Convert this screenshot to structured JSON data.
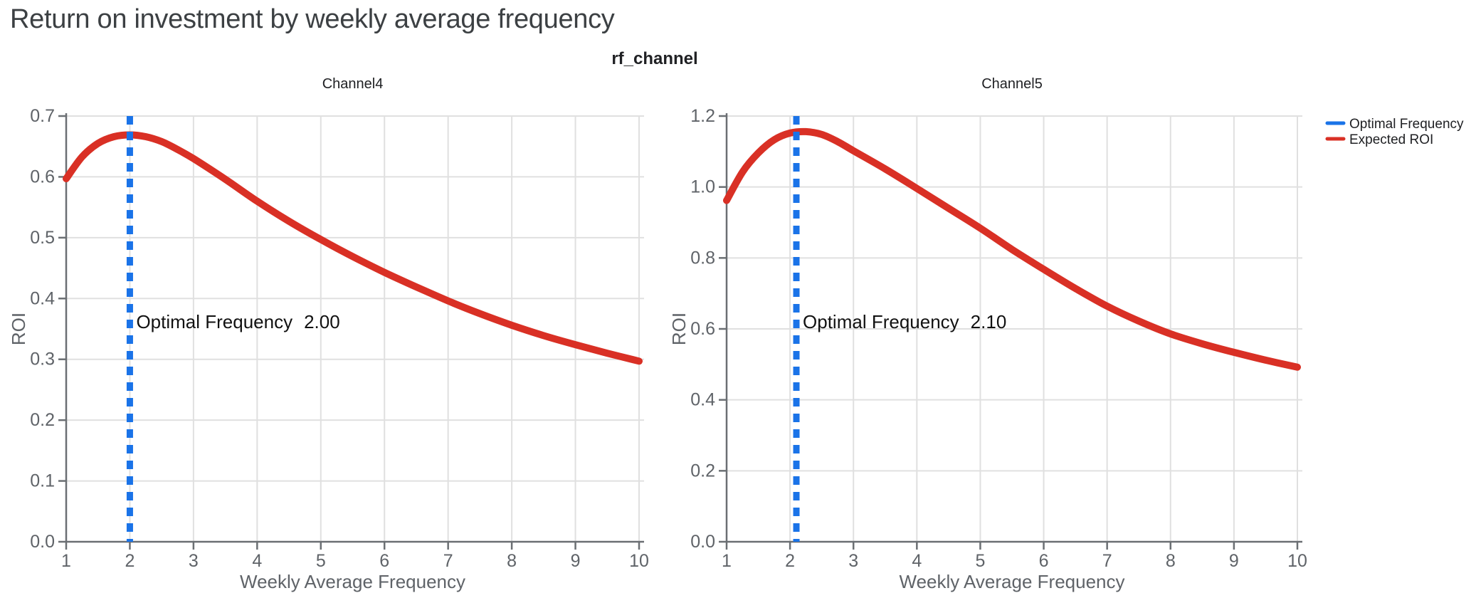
{
  "page": {
    "title": "Return on investment by weekly average frequency"
  },
  "figure": {
    "facet_title": "rf_channel"
  },
  "colors": {
    "expected_roi": "#D93025",
    "optimal_frequency": "#1A73E8",
    "gridline": "#E0E0E0",
    "spine": "#6B6F73",
    "tick_text": "#5F6368",
    "title_text": "#3C4043"
  },
  "legend": {
    "items": [
      {
        "label": "Optimal Frequency",
        "color": "#1A73E8"
      },
      {
        "label": "Expected ROI",
        "color": "#D93025"
      }
    ]
  },
  "chart_data": [
    {
      "type": "line",
      "title": "Channel4",
      "xlabel": "Weekly Average Frequency",
      "ylabel": "ROI",
      "xlim": [
        1,
        10
      ],
      "ylim": [
        0,
        0.7
      ],
      "grid": true,
      "xticks": [
        "1",
        "2",
        "3",
        "4",
        "5",
        "6",
        "7",
        "8",
        "9",
        "10"
      ],
      "yticks": [
        {
          "v": 0.0,
          "label": "0.0"
        },
        {
          "v": 0.1,
          "label": "0.1"
        },
        {
          "v": 0.2,
          "label": "0.2"
        },
        {
          "v": 0.3,
          "label": "0.3"
        },
        {
          "v": 0.4,
          "label": "0.4"
        },
        {
          "v": 0.5,
          "label": "0.5"
        },
        {
          "v": 0.6,
          "label": "0.6"
        },
        {
          "v": 0.7,
          "label": "0.7"
        }
      ],
      "vline": {
        "x": 2.0,
        "name": "Optimal Frequency"
      },
      "annotation": {
        "label": "Optimal Frequency",
        "value": "2.00"
      },
      "series": [
        {
          "name": "Expected ROI",
          "x": [
            1,
            1.25,
            1.5,
            1.75,
            2,
            2.25,
            2.5,
            2.75,
            3,
            3.5,
            4,
            4.5,
            5,
            5.5,
            6,
            6.5,
            7,
            7.5,
            8,
            8.5,
            9,
            9.5,
            10
          ],
          "y": [
            0.597,
            0.633,
            0.655,
            0.666,
            0.669,
            0.666,
            0.658,
            0.645,
            0.63,
            0.596,
            0.56,
            0.527,
            0.497,
            0.469,
            0.443,
            0.419,
            0.396,
            0.375,
            0.356,
            0.339,
            0.324,
            0.31,
            0.297
          ]
        }
      ]
    },
    {
      "type": "line",
      "title": "Channel5",
      "xlabel": "Weekly Average Frequency",
      "ylabel": "ROI",
      "xlim": [
        1,
        10
      ],
      "ylim": [
        0,
        1.2
      ],
      "grid": true,
      "xticks": [
        "1",
        "2",
        "3",
        "4",
        "5",
        "6",
        "7",
        "8",
        "9",
        "10"
      ],
      "yticks": [
        {
          "v": 0.0,
          "label": "0.0"
        },
        {
          "v": 0.2,
          "label": "0.2"
        },
        {
          "v": 0.4,
          "label": "0.4"
        },
        {
          "v": 0.6,
          "label": "0.6"
        },
        {
          "v": 0.8,
          "label": "0.8"
        },
        {
          "v": 1.0,
          "label": "1.0"
        },
        {
          "v": 1.2,
          "label": "1.2"
        }
      ],
      "vline": {
        "x": 2.1,
        "name": "Optimal Frequency"
      },
      "annotation": {
        "label": "Optimal Frequency",
        "value": "2.10"
      },
      "series": [
        {
          "name": "Expected ROI",
          "x": [
            1,
            1.25,
            1.5,
            1.75,
            2,
            2.25,
            2.5,
            2.75,
            3,
            3.5,
            4,
            4.5,
            5,
            5.5,
            6,
            6.5,
            7,
            7.5,
            8,
            8.5,
            9,
            9.5,
            10
          ],
          "y": [
            0.962,
            1.042,
            1.096,
            1.133,
            1.152,
            1.156,
            1.148,
            1.128,
            1.102,
            1.051,
            0.996,
            0.94,
            0.884,
            0.824,
            0.768,
            0.714,
            0.664,
            0.622,
            0.586,
            0.558,
            0.534,
            0.512,
            0.492
          ]
        }
      ]
    }
  ]
}
